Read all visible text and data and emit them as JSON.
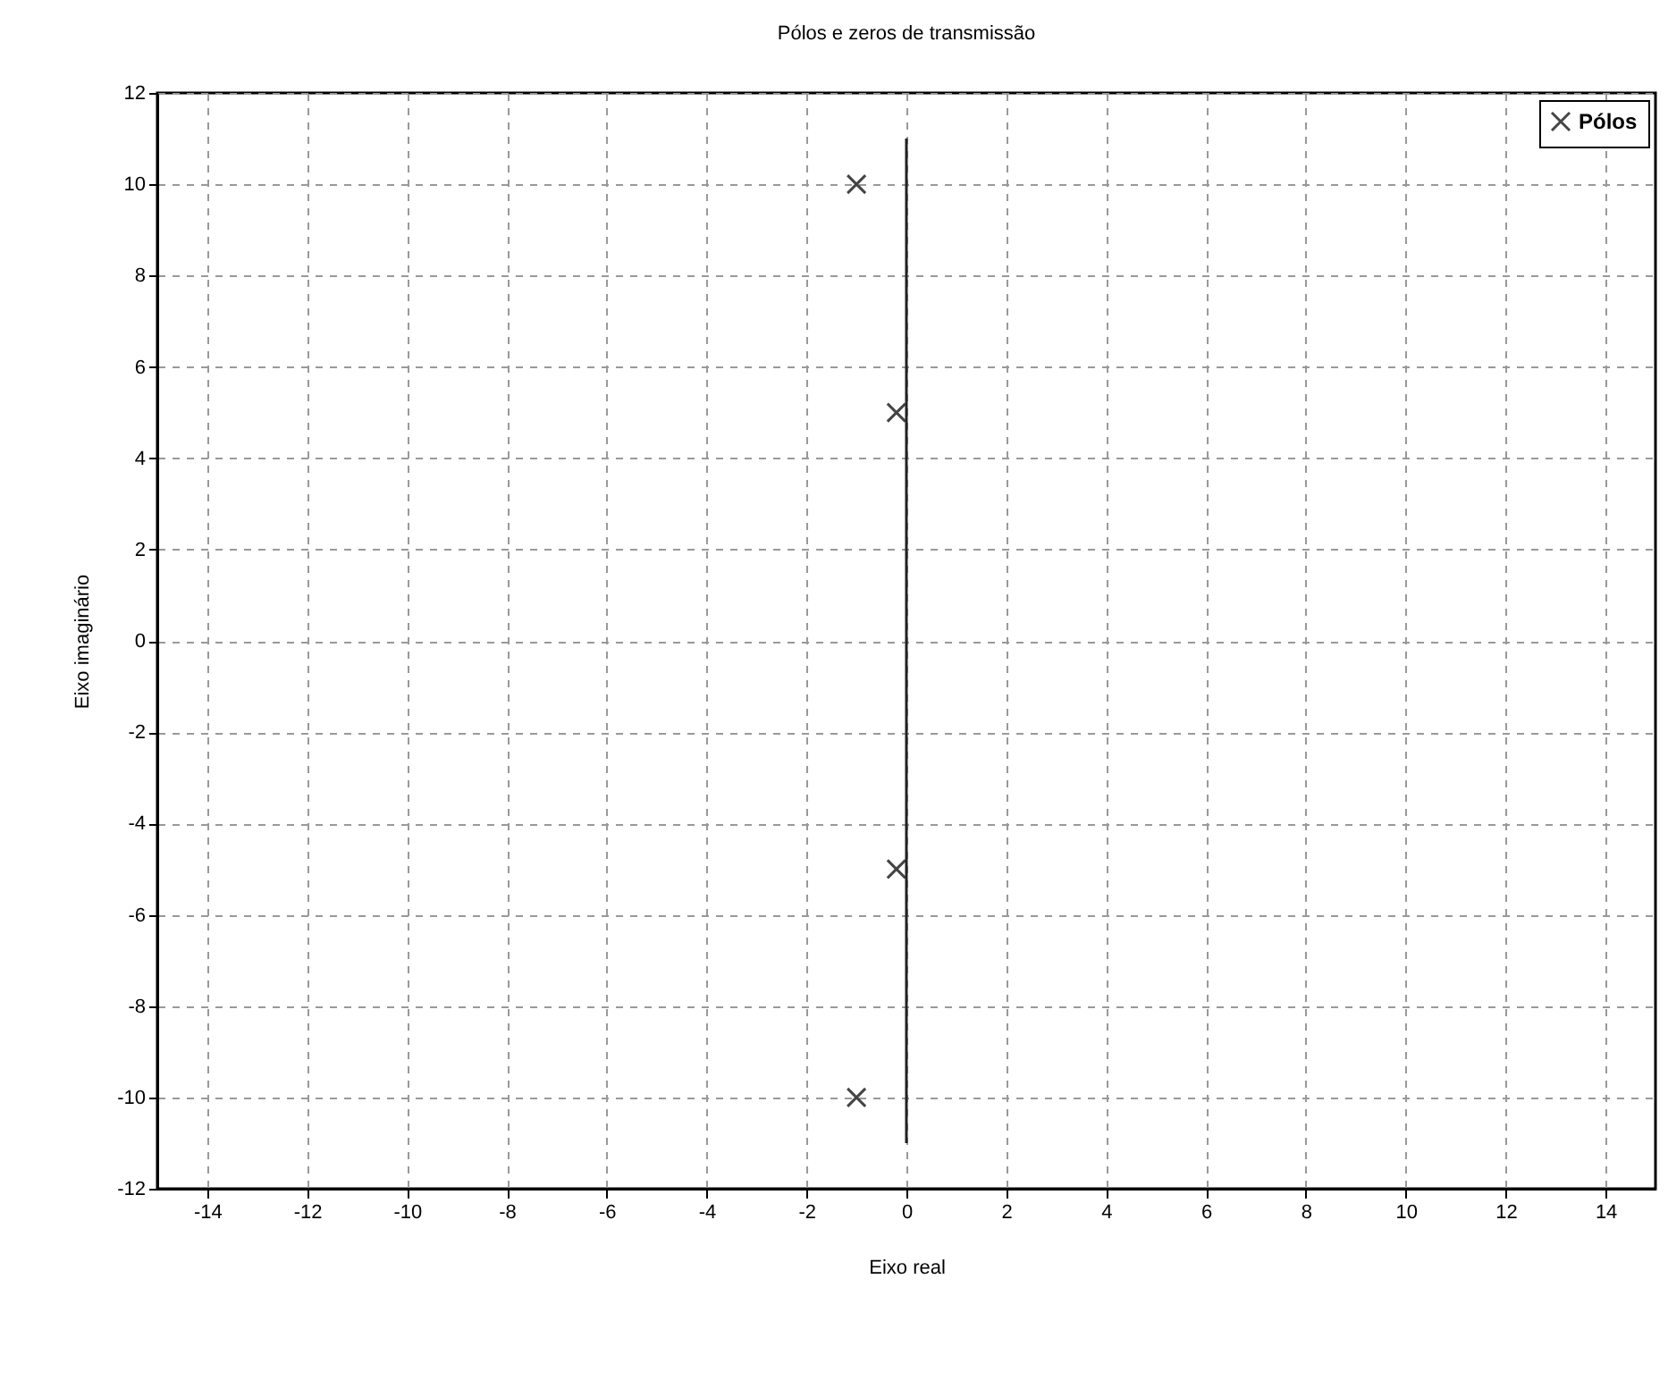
{
  "chart_data": {
    "type": "scatter",
    "title": "Pólos e zeros de transmissão",
    "xlabel": "Eixo real",
    "ylabel": "Eixo imaginário",
    "xlim": [
      -15,
      15
    ],
    "xticks": [
      -14,
      -12,
      -10,
      -8,
      -6,
      -4,
      -2,
      0,
      2,
      4,
      6,
      8,
      10,
      12,
      14
    ],
    "ylim": [
      -12,
      12
    ],
    "yticks": [
      -12,
      -10,
      -8,
      -6,
      -4,
      -2,
      0,
      2,
      4,
      6,
      8,
      10,
      12
    ],
    "grid": true,
    "legend": "top right",
    "series": [
      {
        "name": "Pólos",
        "marker": "cross",
        "color": "#444444",
        "x": [
          -1,
          -0.2,
          -0.2,
          -1
        ],
        "values": [
          10,
          5,
          -5,
          -10
        ]
      },
      {
        "type": "line",
        "color": "#222222",
        "x": [
          0,
          0
        ],
        "values": [
          -11,
          11
        ]
      }
    ]
  }
}
